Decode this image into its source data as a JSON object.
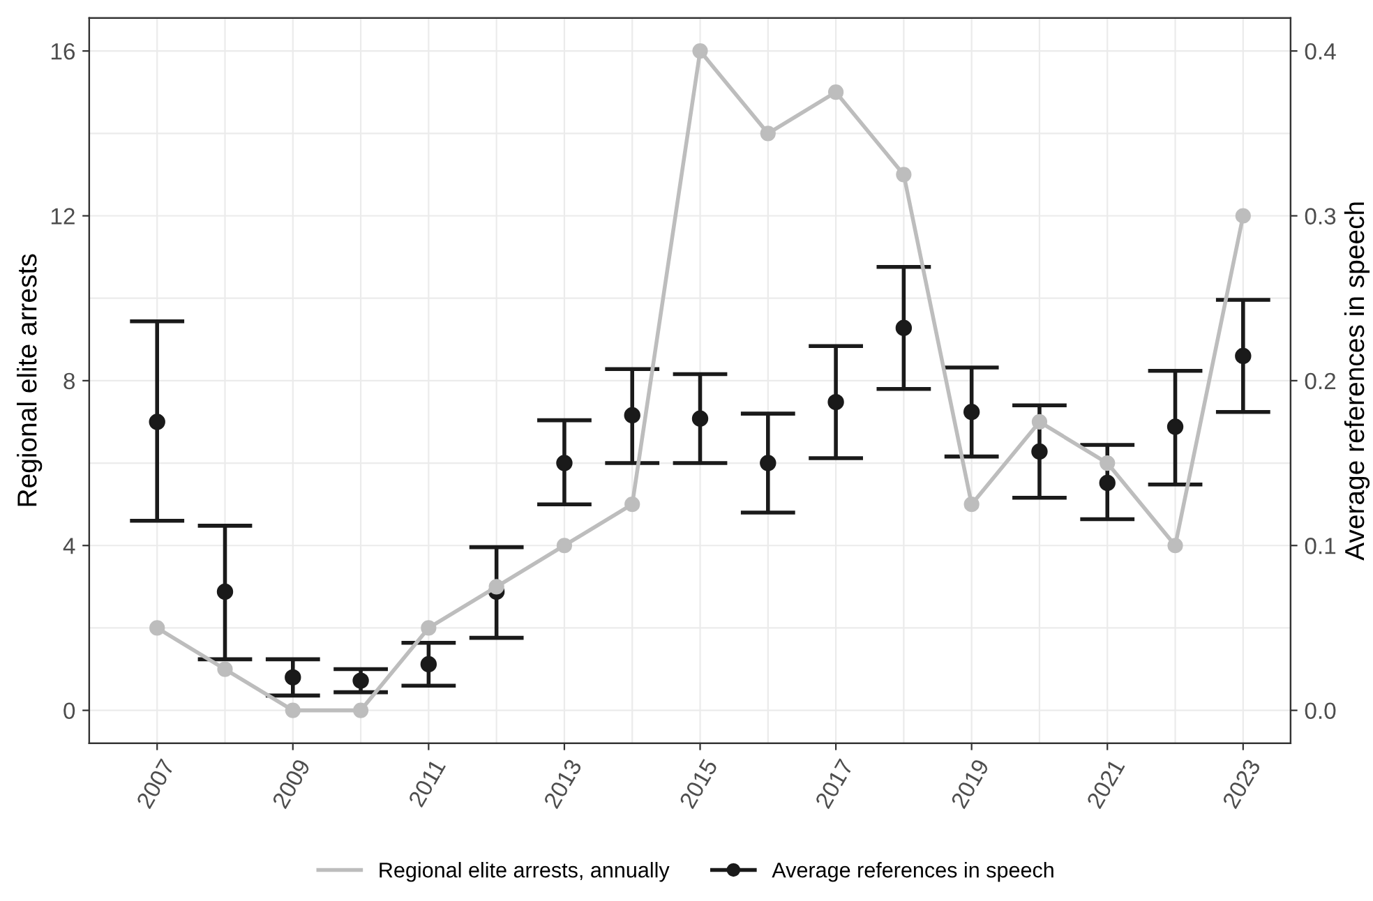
{
  "chart_data": {
    "type": "line",
    "ylabel": "Regional elite arrests",
    "y2label": "Average references in speech",
    "x": [
      2007,
      2008,
      2009,
      2010,
      2011,
      2012,
      2013,
      2014,
      2015,
      2016,
      2017,
      2018,
      2019,
      2020,
      2021,
      2022,
      2023
    ],
    "series": [
      {
        "name": "Regional elite arrests, annually",
        "color": "#bdbdbd",
        "values": [
          2,
          1,
          0,
          0,
          2,
          3,
          4,
          5,
          16,
          14,
          15,
          13,
          5,
          7,
          6,
          4,
          12
        ]
      },
      {
        "name": "Average references in speech",
        "type": "scatter",
        "axis": "y2",
        "color": "#1a1a1a",
        "values": [
          0.175,
          0.072,
          0.02,
          0.018,
          0.028,
          0.072,
          0.15,
          0.179,
          0.177,
          0.15,
          0.187,
          0.232,
          0.181,
          0.157,
          0.138,
          0.172,
          0.215
        ],
        "errors": [
          [
            0.115,
            0.236
          ],
          [
            0.031,
            0.112
          ],
          [
            0.009,
            0.031
          ],
          [
            0.011,
            0.025
          ],
          [
            0.015,
            0.041
          ],
          [
            0.044,
            0.099
          ],
          [
            0.125,
            0.176
          ],
          [
            0.15,
            0.207
          ],
          [
            0.15,
            0.204
          ],
          [
            0.12,
            0.18
          ],
          [
            0.153,
            0.221
          ],
          [
            0.195,
            0.269
          ],
          [
            0.154,
            0.208
          ],
          [
            0.129,
            0.185
          ],
          [
            0.116,
            0.161
          ],
          [
            0.137,
            0.206
          ],
          [
            0.181,
            0.249
          ]
        ]
      }
    ],
    "xlim": [
      2006.0,
      2023.7
    ],
    "xticks": [
      2007,
      2009,
      2011,
      2013,
      2015,
      2017,
      2019,
      2021,
      2023
    ],
    "ylim": [
      -0.8,
      16.8
    ],
    "yticks": [
      0,
      4,
      8,
      12,
      16
    ],
    "y2lim": [
      -0.02,
      0.42
    ],
    "y2ticks": [
      {
        "value": 0,
        "label": "0.0"
      },
      {
        "value": 0.1,
        "label": "0.1"
      },
      {
        "value": 0.2,
        "label": "0.2"
      },
      {
        "value": 0.3,
        "label": "0.3"
      },
      {
        "value": 0.4,
        "label": "0.4"
      }
    ],
    "grid": true,
    "legend": "bottom",
    "marker": "circle"
  }
}
